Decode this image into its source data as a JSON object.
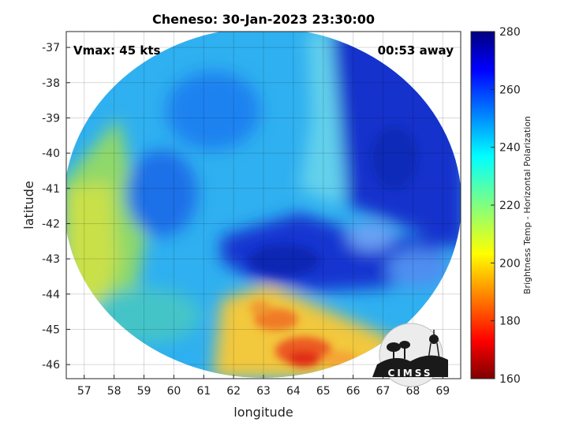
{
  "chart_data": {
    "type": "heatmap",
    "title": "Cheneso: 30-Jan-2023 23:30:00",
    "xlabel": "longitude",
    "ylabel": "latitude",
    "xlim": [
      56.4,
      69.6
    ],
    "ylim": [
      -46.4,
      -36.55
    ],
    "xticks": [
      57,
      58,
      59,
      60,
      61,
      62,
      63,
      64,
      65,
      66,
      67,
      68,
      69
    ],
    "yticks": [
      -37,
      -38,
      -39,
      -40,
      -41,
      -42,
      -43,
      -44,
      -45,
      -46
    ],
    "grid": true,
    "annotations": [
      "Vmax: 45 kts",
      "00:53 away"
    ],
    "storm_center": {
      "lon": 63.8,
      "lat": -42.9
    },
    "swath_extent": {
      "lon": [
        56.5,
        69.5
      ],
      "lat": [
        -46.4,
        -36.8
      ]
    },
    "colorbar": {
      "label": "Brightness Temp - Horizontal Polarization",
      "range": [
        160,
        280
      ],
      "ticks": [
        160,
        180,
        200,
        220,
        240,
        260,
        280
      ],
      "colormap": "jet"
    }
  },
  "logo_text": "CIMSS"
}
